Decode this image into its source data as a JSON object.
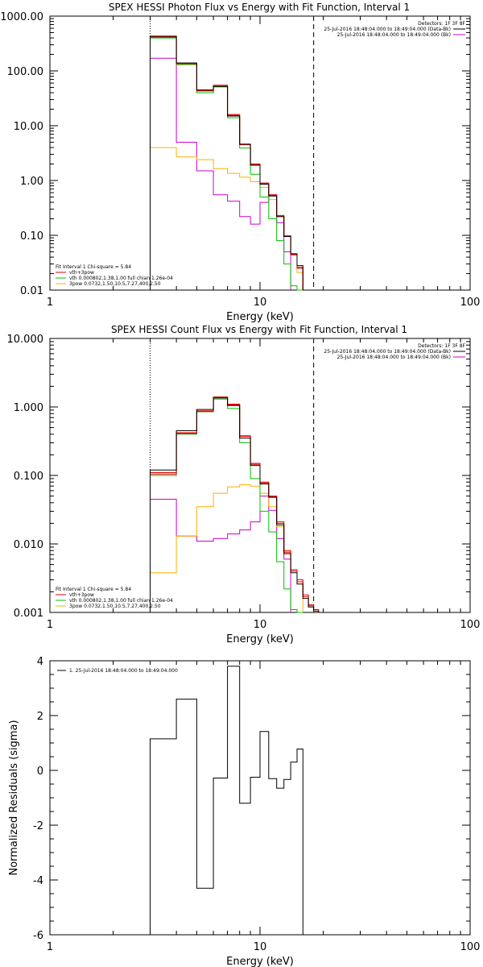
{
  "chart_data": [
    {
      "type": "line",
      "title": "SPEX HESSI Photon Flux vs Energy with Fit Function, Interval 1",
      "xlabel": "Energy (keV)",
      "ylabel": "",
      "xscale": "log",
      "yscale": "log",
      "xlim": [
        1,
        100
      ],
      "ylim": [
        0.01,
        1000
      ],
      "xticks": [
        "1",
        "10",
        "100"
      ],
      "yticks": [
        "1000.00",
        "100.00",
        "10.00",
        "1.00",
        "0.10",
        "0.01"
      ],
      "vlines": [
        3,
        18
      ],
      "legend_top": {
        "header": "Detectors: 1F 3F 8F",
        "entries": [
          "25-Jul-2016 18:48:04.000 to 18:49:04.000 (Data-Bk)",
          "25-Jul-2016 18:48:04.000 to 18:49:04.000 (Bk)"
        ]
      },
      "legend_bottom": {
        "header": "Fit Interval 1   Chi-square = 5.84",
        "entries": [
          "vth+3pow",
          "vth 0.000802,1.38,1.00   full chian 1.26e-04",
          "3pow 0.0732,1.50,10.5,7.27,400,2.50"
        ]
      },
      "bin_edges": [
        3,
        4,
        5,
        6,
        7,
        8,
        9,
        10,
        11,
        12,
        13,
        14,
        15,
        16,
        17,
        18
      ],
      "series": [
        {
          "name": "Data-Bk",
          "color": "#000000",
          "values": [
            430,
            140,
            45,
            52,
            15,
            4.6,
            1.9,
            0.85,
            0.52,
            0.22,
            0.095,
            0.046,
            0.028,
            null,
            null
          ]
        },
        {
          "name": "Bk",
          "color": "#e00000",
          "values": [
            410,
            135,
            43,
            55,
            16,
            4.5,
            2.0,
            0.9,
            0.55,
            0.23,
            0.098,
            0.044,
            0.025,
            null,
            null
          ]
        },
        {
          "name": "vth+3pow",
          "color": "#e00000",
          "values": [
            420,
            138,
            44,
            53,
            15.5,
            4.55,
            1.95,
            0.88,
            0.53,
            0.22,
            0.096,
            0.045,
            0.026,
            null,
            null
          ]
        },
        {
          "name": "vth",
          "color": "#00c000",
          "values": [
            400,
            130,
            40,
            51,
            14,
            3.9,
            1.3,
            0.5,
            0.2,
            0.08,
            0.03,
            0.012,
            0.005,
            null,
            null
          ]
        },
        {
          "name": "3pow",
          "color": "#ffb000",
          "values": [
            4.0,
            2.7,
            2.4,
            1.65,
            1.35,
            1.15,
            0.95,
            0.75,
            0.45,
            0.22,
            0.095,
            0.045,
            0.021,
            null,
            null
          ]
        },
        {
          "name": "Bk",
          "color": "#cc00cc",
          "values": [
            170,
            5.0,
            1.5,
            0.55,
            0.42,
            0.22,
            0.16,
            0.4,
            0.55,
            0.17,
            0.05,
            null,
            null,
            null,
            null
          ]
        }
      ]
    },
    {
      "type": "line",
      "title": "SPEX HESSI Count Flux vs Energy with Fit Function, Interval 1",
      "xlabel": "Energy (keV)",
      "ylabel": "",
      "xscale": "log",
      "yscale": "log",
      "xlim": [
        1,
        100
      ],
      "ylim": [
        0.001,
        10
      ],
      "xticks": [
        "1",
        "10",
        "100"
      ],
      "yticks": [
        "10.000",
        "1.000",
        "0.100",
        "0.010",
        "0.001"
      ],
      "vlines": [
        3,
        18
      ],
      "legend_top": {
        "header": "Detectors: 1F 3F 8F",
        "entries": [
          "25-Jul-2016 18:48:04.000 to 18:49:04.000 (Data-Bk)",
          "25-Jul-2016 18:48:04.000 to 18:49:04.000 (Bk)"
        ]
      },
      "legend_bottom": {
        "header": "Fit Interval 1   Chi-square = 5.84",
        "entries": [
          "vth+3pow",
          "vth 0.000802,1.38,1.00   full chian 1.26e-04",
          "3pow 0.0732,1.50,10.5,7.27,400,2.50"
        ]
      },
      "bin_edges": [
        3,
        4,
        5,
        6,
        7,
        8,
        9,
        10,
        11,
        12,
        13,
        14,
        15,
        16,
        17,
        18,
        19
      ],
      "series": [
        {
          "name": "Data-Bk",
          "color": "#000000",
          "values": [
            0.12,
            0.45,
            0.92,
            1.35,
            1.05,
            0.35,
            0.14,
            0.075,
            0.048,
            0.019,
            0.0072,
            0.0038,
            0.0026,
            0.0016,
            0.0012,
            0.00105
          ]
        },
        {
          "name": "Bk",
          "color": "#e00000",
          "values": [
            0.11,
            0.42,
            0.88,
            1.4,
            1.1,
            0.38,
            0.15,
            0.08,
            0.05,
            0.021,
            0.008,
            0.0042,
            0.003,
            0.0018,
            0.0013,
            0.0011
          ]
        },
        {
          "name": "vth+3pow",
          "color": "#e00000",
          "values": [
            0.105,
            0.41,
            0.86,
            1.38,
            1.08,
            0.37,
            0.145,
            0.078,
            0.049,
            0.02,
            0.0076,
            0.004,
            0.0028,
            0.0017,
            0.00125,
            null
          ]
        },
        {
          "name": "vth",
          "color": "#00c000",
          "values": [
            0.1,
            0.4,
            0.85,
            1.3,
            0.95,
            0.3,
            0.09,
            0.03,
            0.015,
            0.0055,
            0.0022,
            0.0011,
            0.0004,
            null,
            null,
            null
          ]
        },
        {
          "name": "3pow",
          "color": "#ffb000",
          "values": [
            0.0038,
            0.013,
            0.035,
            0.055,
            0.068,
            0.073,
            0.07,
            0.055,
            0.035,
            0.018,
            0.0075,
            0.0042,
            0.0028,
            null,
            null,
            null
          ]
        },
        {
          "name": "Bk",
          "color": "#cc00cc",
          "values": [
            0.045,
            0.013,
            0.011,
            0.012,
            0.014,
            0.016,
            0.021,
            0.05,
            0.031,
            0.012,
            0.006,
            null,
            null,
            null,
            null,
            null
          ]
        }
      ]
    },
    {
      "type": "line",
      "title": "",
      "xlabel": "Energy (keV)",
      "ylabel": "Normalized Residuals (sigma)",
      "xscale": "log",
      "yscale": "linear",
      "xlim": [
        1,
        100
      ],
      "ylim": [
        -6,
        4
      ],
      "xticks": [
        "1",
        "10",
        "100"
      ],
      "yticks": [
        "4",
        "2",
        "0",
        "-2",
        "-4",
        "-6"
      ],
      "legend": {
        "entries": [
          "1. 25-Jul-2016 18:48:04.000 to 18:49:04.000"
        ]
      },
      "bin_edges": [
        3,
        4,
        5,
        6,
        7,
        8,
        9,
        10,
        11,
        12,
        13,
        14,
        15,
        16,
        17,
        18
      ],
      "series": [
        {
          "name": "1. 25-Jul-2016 18:48:04.000 to 18:49:04.000",
          "color": "#000000",
          "values": [
            1.15,
            2.6,
            -4.3,
            -0.28,
            3.8,
            -1.2,
            -0.25,
            1.42,
            -0.3,
            -0.65,
            -0.33,
            0.3,
            0.78,
            null,
            null
          ]
        }
      ]
    }
  ]
}
